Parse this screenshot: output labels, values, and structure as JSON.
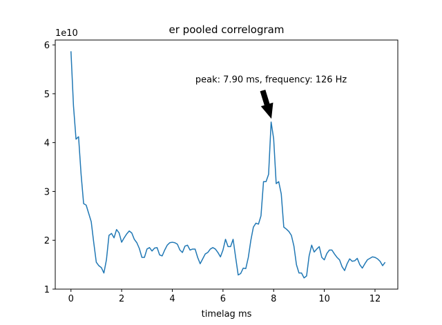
{
  "chart_data": {
    "type": "line",
    "title": "er pooled correlogram",
    "xlabel": "timelag ms",
    "ylabel": "",
    "y_offset_label": "1e10",
    "xlim": [
      -0.62,
      12.9
    ],
    "ylim": [
      1.0,
      6.1
    ],
    "xticks": [
      0,
      2,
      4,
      6,
      8,
      10,
      12
    ],
    "xtick_labels": [
      "0",
      "2",
      "4",
      "6",
      "8",
      "10",
      "12"
    ],
    "yticks": [
      1,
      2,
      3,
      4,
      5,
      6
    ],
    "ytick_labels": [
      "1",
      "2",
      "3",
      "4",
      "5",
      "6"
    ],
    "grid": false,
    "series": [
      {
        "color": "#1f77b4",
        "x": [
          0.0,
          0.1,
          0.2,
          0.3,
          0.4,
          0.5,
          0.6,
          0.7,
          0.8,
          0.9,
          1.0,
          1.1,
          1.2,
          1.3,
          1.4,
          1.5,
          1.6,
          1.7,
          1.8,
          1.9,
          2.0,
          2.1,
          2.2,
          2.3,
          2.4,
          2.5,
          2.6,
          2.7,
          2.8,
          2.9,
          3.0,
          3.1,
          3.2,
          3.3,
          3.4,
          3.5,
          3.6,
          3.7,
          3.8,
          3.9,
          4.0,
          4.1,
          4.2,
          4.3,
          4.4,
          4.5,
          4.6,
          4.7,
          4.8,
          4.9,
          5.0,
          5.1,
          5.2,
          5.3,
          5.4,
          5.5,
          5.6,
          5.7,
          5.8,
          5.9,
          6.0,
          6.1,
          6.2,
          6.3,
          6.4,
          6.5,
          6.6,
          6.7,
          6.8,
          6.9,
          7.0,
          7.1,
          7.2,
          7.3,
          7.4,
          7.5,
          7.6,
          7.7,
          7.8,
          7.9,
          8.0,
          8.1,
          8.2,
          8.3,
          8.4,
          8.5,
          8.6,
          8.7,
          8.8,
          8.9,
          9.0,
          9.1,
          9.2,
          9.3,
          9.4,
          9.5,
          9.6,
          9.7,
          9.8,
          9.9,
          10.0,
          10.1,
          10.2,
          10.3,
          10.4,
          10.5,
          10.6,
          10.7,
          10.8,
          10.9,
          11.0,
          11.1,
          11.2,
          11.3,
          11.4,
          11.5,
          11.6,
          11.7,
          11.8,
          11.9,
          12.0,
          12.1,
          12.2,
          12.3,
          12.4
        ],
        "values": [
          5.87,
          4.75,
          4.07,
          4.12,
          3.35,
          2.75,
          2.72,
          2.55,
          2.38,
          1.95,
          1.55,
          1.48,
          1.44,
          1.33,
          1.6,
          2.1,
          2.14,
          2.05,
          2.22,
          2.15,
          1.96,
          2.05,
          2.13,
          2.19,
          2.15,
          2.02,
          1.95,
          1.83,
          1.65,
          1.65,
          1.82,
          1.85,
          1.78,
          1.84,
          1.85,
          1.7,
          1.68,
          1.8,
          1.9,
          1.95,
          1.96,
          1.95,
          1.92,
          1.8,
          1.75,
          1.88,
          1.9,
          1.8,
          1.82,
          1.82,
          1.65,
          1.52,
          1.62,
          1.72,
          1.75,
          1.82,
          1.85,
          1.82,
          1.75,
          1.66,
          1.8,
          2.02,
          1.87,
          1.87,
          2.02,
          1.65,
          1.29,
          1.32,
          1.43,
          1.42,
          1.65,
          2.0,
          2.27,
          2.35,
          2.33,
          2.5,
          3.2,
          3.2,
          3.35,
          4.42,
          4.08,
          3.16,
          3.2,
          2.95,
          2.27,
          2.23,
          2.18,
          2.1,
          1.88,
          1.5,
          1.33,
          1.33,
          1.23,
          1.27,
          1.68,
          1.9,
          1.76,
          1.82,
          1.87,
          1.65,
          1.6,
          1.73,
          1.8,
          1.8,
          1.72,
          1.65,
          1.6,
          1.46,
          1.38,
          1.52,
          1.62,
          1.57,
          1.58,
          1.63,
          1.5,
          1.43,
          1.52,
          1.6,
          1.63,
          1.66,
          1.65,
          1.62,
          1.57,
          1.48,
          1.55
        ]
      }
    ],
    "annotation": {
      "text": "peak: 7.90 ms, frequency: 126 Hz",
      "xy": [
        7.9,
        4.42
      ],
      "xytext": [
        7.9,
        5.3
      ]
    }
  }
}
